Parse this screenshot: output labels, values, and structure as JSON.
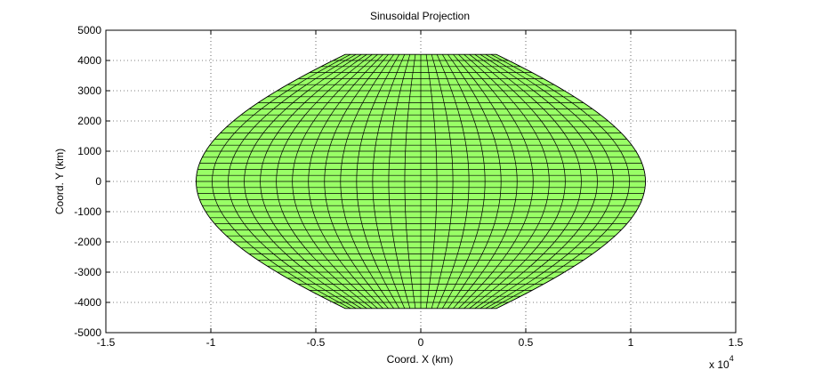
{
  "chart_data": {
    "type": "line",
    "title": "Sinusoidal Projection",
    "xlabel": "Coord. X (km)",
    "ylabel": "Coord. Y (km)",
    "x_exponent": {
      "base": "x 10",
      "power": "4"
    },
    "xlim": [
      -1.5,
      1.5
    ],
    "ylim": [
      -5000,
      5000
    ],
    "xticks": [
      -1.5,
      -1,
      -0.5,
      0,
      0.5,
      1,
      1.5
    ],
    "xtick_labels": [
      "-1.5",
      "-1",
      "-0.5",
      "0",
      "0.5",
      "1",
      "1.5"
    ],
    "yticks": [
      -5000,
      -4000,
      -3000,
      -2000,
      -1000,
      0,
      1000,
      2000,
      3000,
      4000,
      5000
    ],
    "ytick_labels": [
      "-5000",
      "-4000",
      "-3000",
      "-2000",
      "-1000",
      "0",
      "1000",
      "2000",
      "3000",
      "4000",
      "5000"
    ],
    "grid": true,
    "fill_color": "#99ff66",
    "line_color": "#000000",
    "projection": {
      "equator_half_width_x1e4": 1.07,
      "pole_y": 4200,
      "pole_half_width_x1e4": 0.36,
      "meridian_count": 29,
      "parallel_count": 42
    }
  }
}
